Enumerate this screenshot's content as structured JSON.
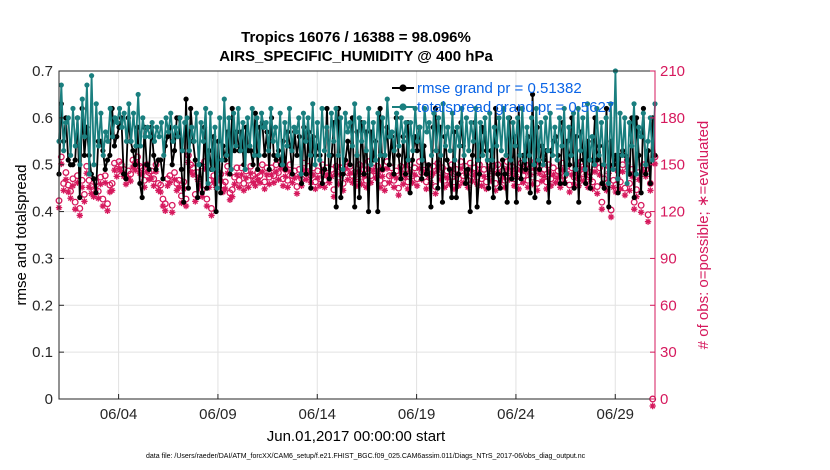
{
  "chart_data": {
    "type": "line",
    "title_line1": "Tropics 16076 / 16388 = 98.096%",
    "title_line2": "AIRS_SPECIFIC_HUMIDITY @ 400 hPa",
    "xlabel": "Jun.01,2017 00:00:00 start",
    "ylabel_left": "rmse and totalspread",
    "ylabel_right": "# of obs: o=possible; ∗=evaluated",
    "footnote": "data file: /Users/raeder/DAI/ATM_forcXX/CAM6_setup/f.e21.FHIST_BGC.f09_025.CAM6assim.011/Diags_NTrS_2017-06/obs_diag_output.nc",
    "x_unit": "day of month (Jun 2017)",
    "xlim": [
      1,
      31
    ],
    "x_ticks": [
      {
        "value": 4,
        "label": "06/04"
      },
      {
        "value": 9,
        "label": "06/09"
      },
      {
        "value": 14,
        "label": "06/14"
      },
      {
        "value": 19,
        "label": "06/19"
      },
      {
        "value": 24,
        "label": "06/24"
      },
      {
        "value": 29,
        "label": "06/29"
      }
    ],
    "ylim_left": [
      0,
      0.7
    ],
    "y_ticks_left": [
      "0",
      "0.1",
      "0.2",
      "0.3",
      "0.4",
      "0.5",
      "0.6",
      "0.7"
    ],
    "ylim_right": [
      0,
      210
    ],
    "y_ticks_right": [
      "0",
      "30",
      "60",
      "90",
      "120",
      "150",
      "180",
      "210"
    ],
    "legend_position": "top-right",
    "colors": {
      "rmse": "#000000",
      "spread": "#1a7f7f",
      "obs": "#d6195d",
      "axis_right": "#d6195d",
      "legend_text": "#0a64e6"
    },
    "series": [
      {
        "name": "rmse grand pr = 0.51382",
        "axis": "left",
        "values": [
          0.48,
          0.63,
          0.55,
          0.6,
          0.51,
          0.5,
          0.5,
          0.51,
          0.6,
          0.43,
          0.62,
          0.52,
          0.58,
          0.52,
          0.48,
          0.47,
          0.44,
          0.55,
          0.55,
          0.53,
          0.49,
          0.51,
          0.52,
          0.62,
          0.54,
          0.56,
          0.58,
          0.6,
          0.48,
          0.47,
          0.6,
          0.55,
          0.53,
          0.5,
          0.58,
          0.46,
          0.43,
          0.58,
          0.5,
          0.49,
          0.58,
          0.52,
          0.49,
          0.51,
          0.51,
          0.47,
          0.54,
          0.56,
          0.58,
          0.5,
          0.53,
          0.6,
          0.6,
          0.49,
          0.42,
          0.64,
          0.45,
          0.62,
          0.55,
          0.51,
          0.43,
          0.5,
          0.44,
          0.58,
          0.45,
          0.53,
          0.49,
          0.56,
          0.4,
          0.55,
          0.44,
          0.54,
          0.51,
          0.57,
          0.48,
          0.62,
          0.53,
          0.57,
          0.53,
          0.57,
          0.5,
          0.58,
          0.53,
          0.53,
          0.5,
          0.61,
          0.49,
          0.58,
          0.59,
          0.52,
          0.57,
          0.49,
          0.6,
          0.52,
          0.51,
          0.53,
          0.5,
          0.55,
          0.49,
          0.57,
          0.54,
          0.48,
          0.57,
          0.52,
          0.56,
          0.46,
          0.58,
          0.48,
          0.57,
          0.45,
          0.56,
          0.52,
          0.54,
          0.52,
          0.46,
          0.49,
          0.62,
          0.47,
          0.52,
          0.59,
          0.41,
          0.62,
          0.43,
          0.48,
          0.51,
          0.55,
          0.5,
          0.6,
          0.41,
          0.57,
          0.43,
          0.59,
          0.48,
          0.57,
          0.4,
          0.57,
          0.51,
          0.55,
          0.4,
          0.62,
          0.49,
          0.52,
          0.58,
          0.5,
          0.56,
          0.48,
          0.6,
          0.52,
          0.47,
          0.56,
          0.48,
          0.59,
          0.44,
          0.51,
          0.56,
          0.53,
          0.58,
          0.47,
          0.54,
          0.48,
          0.5,
          0.41,
          0.58,
          0.62,
          0.45,
          0.58,
          0.42,
          0.56,
          0.51,
          0.49,
          0.43,
          0.57,
          0.43,
          0.48,
          0.59,
          0.54,
          0.46,
          0.49,
          0.4,
          0.52,
          0.59,
          0.41,
          0.48,
          0.58,
          0.57,
          0.53,
          0.45,
          0.53,
          0.43,
          0.62,
          0.48,
          0.45,
          0.51,
          0.48,
          0.42,
          0.6,
          0.47,
          0.56,
          0.42,
          0.62,
          0.47,
          0.52,
          0.49,
          0.56,
          0.44,
          0.65,
          0.43,
          0.58,
          0.49,
          0.54,
          0.51,
          0.53,
          0.42,
          0.53,
          0.55,
          0.56,
          0.52,
          0.46,
          0.59,
          0.46,
          0.55,
          0.5,
          0.6,
          0.45,
          0.56,
          0.42,
          0.57,
          0.51,
          0.46,
          0.55,
          0.45,
          0.51,
          0.6,
          0.51,
          0.54,
          0.46,
          0.45,
          0.62,
          0.41,
          0.55,
          0.5,
          0.52,
          0.44,
          0.52,
          0.53,
          0.52,
          0.51,
          0.48,
          0.6,
          0.43,
          0.6,
          0.52,
          0.44,
          0.62,
          0.48,
          0.53,
          0.46,
          0.6,
          0.52
        ]
      },
      {
        "name": "totalspread grand pr = 0.5627",
        "axis": "left",
        "values": [
          0.55,
          0.67,
          0.53,
          0.59,
          0.6,
          0.52,
          0.62,
          0.54,
          0.6,
          0.5,
          0.64,
          0.56,
          0.67,
          0.48,
          0.69,
          0.5,
          0.63,
          0.54,
          0.61,
          0.52,
          0.57,
          0.55,
          0.62,
          0.56,
          0.6,
          0.59,
          0.62,
          0.58,
          0.61,
          0.55,
          0.63,
          0.55,
          0.61,
          0.54,
          0.65,
          0.54,
          0.6,
          0.56,
          0.58,
          0.56,
          0.59,
          0.55,
          0.58,
          0.56,
          0.59,
          0.52,
          0.6,
          0.57,
          0.61,
          0.55,
          0.58,
          0.56,
          0.6,
          0.53,
          0.59,
          0.6,
          0.53,
          0.58,
          0.55,
          0.61,
          0.5,
          0.59,
          0.55,
          0.62,
          0.46,
          0.61,
          0.49,
          0.58,
          0.45,
          0.6,
          0.51,
          0.64,
          0.52,
          0.6,
          0.49,
          0.61,
          0.54,
          0.62,
          0.53,
          0.59,
          0.49,
          0.6,
          0.54,
          0.62,
          0.52,
          0.6,
          0.52,
          0.61,
          0.58,
          0.59,
          0.53,
          0.62,
          0.55,
          0.58,
          0.52,
          0.61,
          0.5,
          0.59,
          0.54,
          0.62,
          0.53,
          0.58,
          0.57,
          0.6,
          0.48,
          0.61,
          0.55,
          0.6,
          0.52,
          0.63,
          0.5,
          0.59,
          0.51,
          0.62,
          0.53,
          0.58,
          0.52,
          0.61,
          0.55,
          0.62,
          0.52,
          0.6,
          0.49,
          0.61,
          0.57,
          0.59,
          0.54,
          0.63,
          0.52,
          0.6,
          0.55,
          0.59,
          0.53,
          0.62,
          0.5,
          0.59,
          0.51,
          0.61,
          0.52,
          0.6,
          0.52,
          0.64,
          0.56,
          0.57,
          0.53,
          0.61,
          0.54,
          0.6,
          0.55,
          0.59,
          0.51,
          0.59,
          0.53,
          0.62,
          0.55,
          0.58,
          0.51,
          0.62,
          0.57,
          0.59,
          0.52,
          0.61,
          0.53,
          0.6,
          0.52,
          0.63,
          0.54,
          0.58,
          0.53,
          0.61,
          0.51,
          0.58,
          0.54,
          0.62,
          0.52,
          0.6,
          0.53,
          0.59,
          0.55,
          0.62,
          0.51,
          0.59,
          0.52,
          0.6,
          0.51,
          0.61,
          0.51,
          0.58,
          0.54,
          0.6,
          0.53,
          0.62,
          0.52,
          0.6,
          0.51,
          0.59,
          0.54,
          0.6,
          0.52,
          0.62,
          0.51,
          0.58,
          0.52,
          0.6,
          0.5,
          0.62,
          0.51,
          0.59,
          0.5,
          0.6,
          0.53,
          0.61,
          0.52,
          0.58,
          0.51,
          0.6,
          0.54,
          0.62,
          0.48,
          0.58,
          0.52,
          0.61,
          0.49,
          0.62,
          0.53,
          0.6,
          0.49,
          0.63,
          0.51,
          0.56,
          0.5,
          0.62,
          0.52,
          0.59,
          0.5,
          0.6,
          0.46,
          0.63,
          0.49,
          0.7,
          0.47,
          0.61,
          0.52,
          0.6,
          0.46,
          0.59,
          0.54,
          0.63,
          0.48,
          0.58,
          0.56,
          0.61,
          0.5,
          0.55,
          0.6,
          0.51,
          0.63
        ]
      },
      {
        "name": "obs possible",
        "axis": "right",
        "marker": "o",
        "values": [
          127,
          155,
          138,
          145,
          137,
          133,
          141,
          126,
          143,
          122,
          140,
          131,
          149,
          140,
          136,
          134,
          139,
          133,
          142,
          128,
          143,
          125,
          137,
          138,
          151,
          147,
          152,
          150,
          147,
          142,
          146,
          144,
          153,
          151,
          155,
          149,
          148,
          140,
          150,
          145,
          146,
          141,
          150,
          138,
          137,
          128,
          125,
          141,
          143,
          124,
          145,
          138,
          140,
          130,
          139,
          128,
          156,
          150,
          148,
          131,
          145,
          141,
          134,
          152,
          128,
          140,
          122,
          143,
          140,
          145,
          144,
          137,
          139,
          149,
          132,
          134,
          142,
          148,
          140,
          148,
          138,
          146,
          140,
          149,
          143,
          141,
          145,
          143,
          150,
          139,
          148,
          142,
          148,
          143,
          150,
          145,
          152,
          141,
          147,
          140,
          150,
          143,
          146,
          136,
          147,
          141,
          151,
          145,
          149,
          143,
          148,
          139,
          146,
          141,
          150,
          140,
          148,
          143,
          147,
          134,
          149,
          142,
          148,
          138,
          152,
          145,
          149,
          143,
          145,
          141,
          150,
          142,
          147,
          140,
          152,
          143,
          151,
          146,
          149,
          140,
          147,
          138,
          152,
          143,
          148,
          140,
          146,
          135,
          149,
          142,
          147,
          139,
          150,
          143,
          148,
          141,
          152,
          145,
          150,
          139,
          147,
          143,
          149,
          136,
          151,
          145,
          148,
          140,
          146,
          142,
          150,
          139,
          147,
          141,
          152,
          143,
          149,
          140,
          151,
          144,
          148,
          142,
          150,
          141,
          147,
          139,
          152,
          144,
          149,
          138,
          150,
          143,
          146,
          140,
          152,
          145,
          149,
          141,
          147,
          139,
          151,
          143,
          150,
          140,
          148,
          142,
          152,
          138,
          149,
          144,
          147,
          139,
          150,
          141,
          148,
          143,
          146,
          140,
          151,
          143,
          149,
          137,
          148,
          142,
          150,
          141,
          152,
          144,
          148,
          140,
          145,
          139,
          150,
          136,
          148,
          126,
          141,
          138,
          149,
          121,
          140,
          137,
          146,
          139,
          150,
          135,
          153,
          138,
          147,
          126,
          134,
          145,
          124,
          150,
          147,
          118,
          138,
          0,
          155
        ]
      },
      {
        "name": "obs evaluated",
        "axis": "right",
        "marker": "*",
        "values": [
          127,
          155,
          138,
          145,
          137,
          133,
          141,
          126,
          143,
          122,
          140,
          131,
          149,
          140,
          136,
          134,
          139,
          133,
          142,
          128,
          143,
          125,
          137,
          138,
          151,
          147,
          152,
          150,
          147,
          142,
          146,
          144,
          153,
          151,
          155,
          149,
          148,
          140,
          150,
          145,
          146,
          141,
          150,
          138,
          137,
          128,
          125,
          141,
          143,
          124,
          145,
          138,
          140,
          130,
          139,
          128,
          156,
          150,
          148,
          131,
          145,
          141,
          134,
          152,
          128,
          140,
          122,
          143,
          140,
          145,
          144,
          137,
          139,
          149,
          132,
          134,
          142,
          148,
          140,
          148,
          138,
          146,
          140,
          149,
          143,
          141,
          145,
          143,
          150,
          139,
          148,
          142,
          148,
          143,
          150,
          145,
          152,
          141,
          147,
          140,
          150,
          143,
          146,
          136,
          147,
          141,
          151,
          145,
          149,
          143,
          148,
          139,
          146,
          141,
          150,
          140,
          148,
          143,
          147,
          134,
          149,
          142,
          148,
          138,
          152,
          145,
          149,
          143,
          145,
          141,
          150,
          142,
          147,
          140,
          152,
          143,
          151,
          146,
          149,
          140,
          147,
          138,
          152,
          143,
          148,
          140,
          146,
          135,
          149,
          142,
          147,
          139,
          150,
          143,
          148,
          141,
          152,
          145,
          150,
          139,
          147,
          143,
          149,
          136,
          151,
          145,
          148,
          140,
          146,
          142,
          150,
          139,
          147,
          141,
          152,
          143,
          149,
          140,
          151,
          144,
          148,
          142,
          150,
          141,
          147,
          139,
          152,
          144,
          149,
          138,
          150,
          143,
          146,
          140,
          152,
          145,
          149,
          141,
          147,
          139,
          151,
          143,
          150,
          140,
          148,
          142,
          152,
          138,
          149,
          144,
          147,
          139,
          150,
          141,
          148,
          143,
          146,
          140,
          151,
          143,
          149,
          137,
          148,
          142,
          150,
          141,
          152,
          144,
          148,
          140,
          145,
          139,
          150,
          136,
          148,
          126,
          141,
          138,
          149,
          121,
          140,
          137,
          146,
          139,
          150,
          135,
          153,
          138,
          147,
          126,
          134,
          145,
          124,
          150,
          147,
          118,
          138,
          0,
          155
        ]
      }
    ]
  }
}
